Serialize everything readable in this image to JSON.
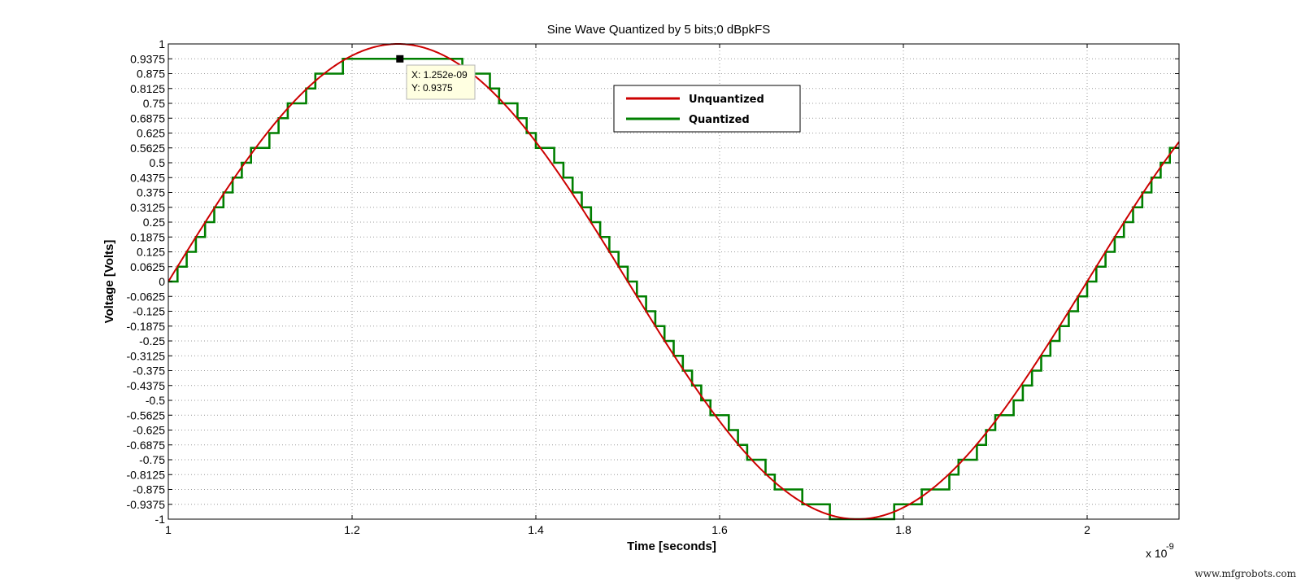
{
  "chart_data": {
    "type": "line",
    "title": "Sine Wave Quantized by 5 bits;0 dBpkFS",
    "xlabel": "Time [seconds]",
    "ylabel": "Voltage [Volts]",
    "x_exponent_label": "x 10",
    "x_exponent_power": "-9",
    "x_scale": 1e-09,
    "xlim": [
      1.0,
      2.1
    ],
    "ylim": [
      -1,
      1
    ],
    "x_ticks": [
      "1",
      "1.2",
      "1.4",
      "1.6",
      "1.8",
      "2"
    ],
    "x_tick_values": [
      1.0,
      1.2,
      1.4,
      1.6,
      1.8,
      2.0
    ],
    "y_ticks": [
      "1",
      "0.9375",
      "0.875",
      "0.8125",
      "0.75",
      "0.6875",
      "0.625",
      "0.5625",
      "0.5",
      "0.4375",
      "0.375",
      "0.3125",
      "0.25",
      "0.1875",
      "0.125",
      "0.0625",
      "0",
      "-0.0625",
      "-0.125",
      "-0.1875",
      "-0.25",
      "-0.3125",
      "-0.375",
      "-0.4375",
      "-0.5",
      "-0.5625",
      "-0.625",
      "-0.6875",
      "-0.75",
      "-0.8125",
      "-0.875",
      "-0.9375",
      "-1"
    ],
    "grid": true,
    "legend_position": "top-center",
    "signal": {
      "frequency_hz": 1000000000.0,
      "amplitude": 1.0,
      "phase_deg": 0,
      "sample_step": 0.01,
      "quantization_step": 0.0625
    },
    "series": [
      {
        "name": "Unquantized",
        "color": "#cc0000",
        "style": "smooth"
      },
      {
        "name": "Quantized",
        "color": "#007f00",
        "style": "staircase"
      }
    ],
    "datatip": {
      "x_text": "X: 1.252e-09",
      "y_text": "Y: 0.9375",
      "x": 1.252,
      "y": 0.9375
    }
  },
  "watermark": "www.mfgrobots.com"
}
